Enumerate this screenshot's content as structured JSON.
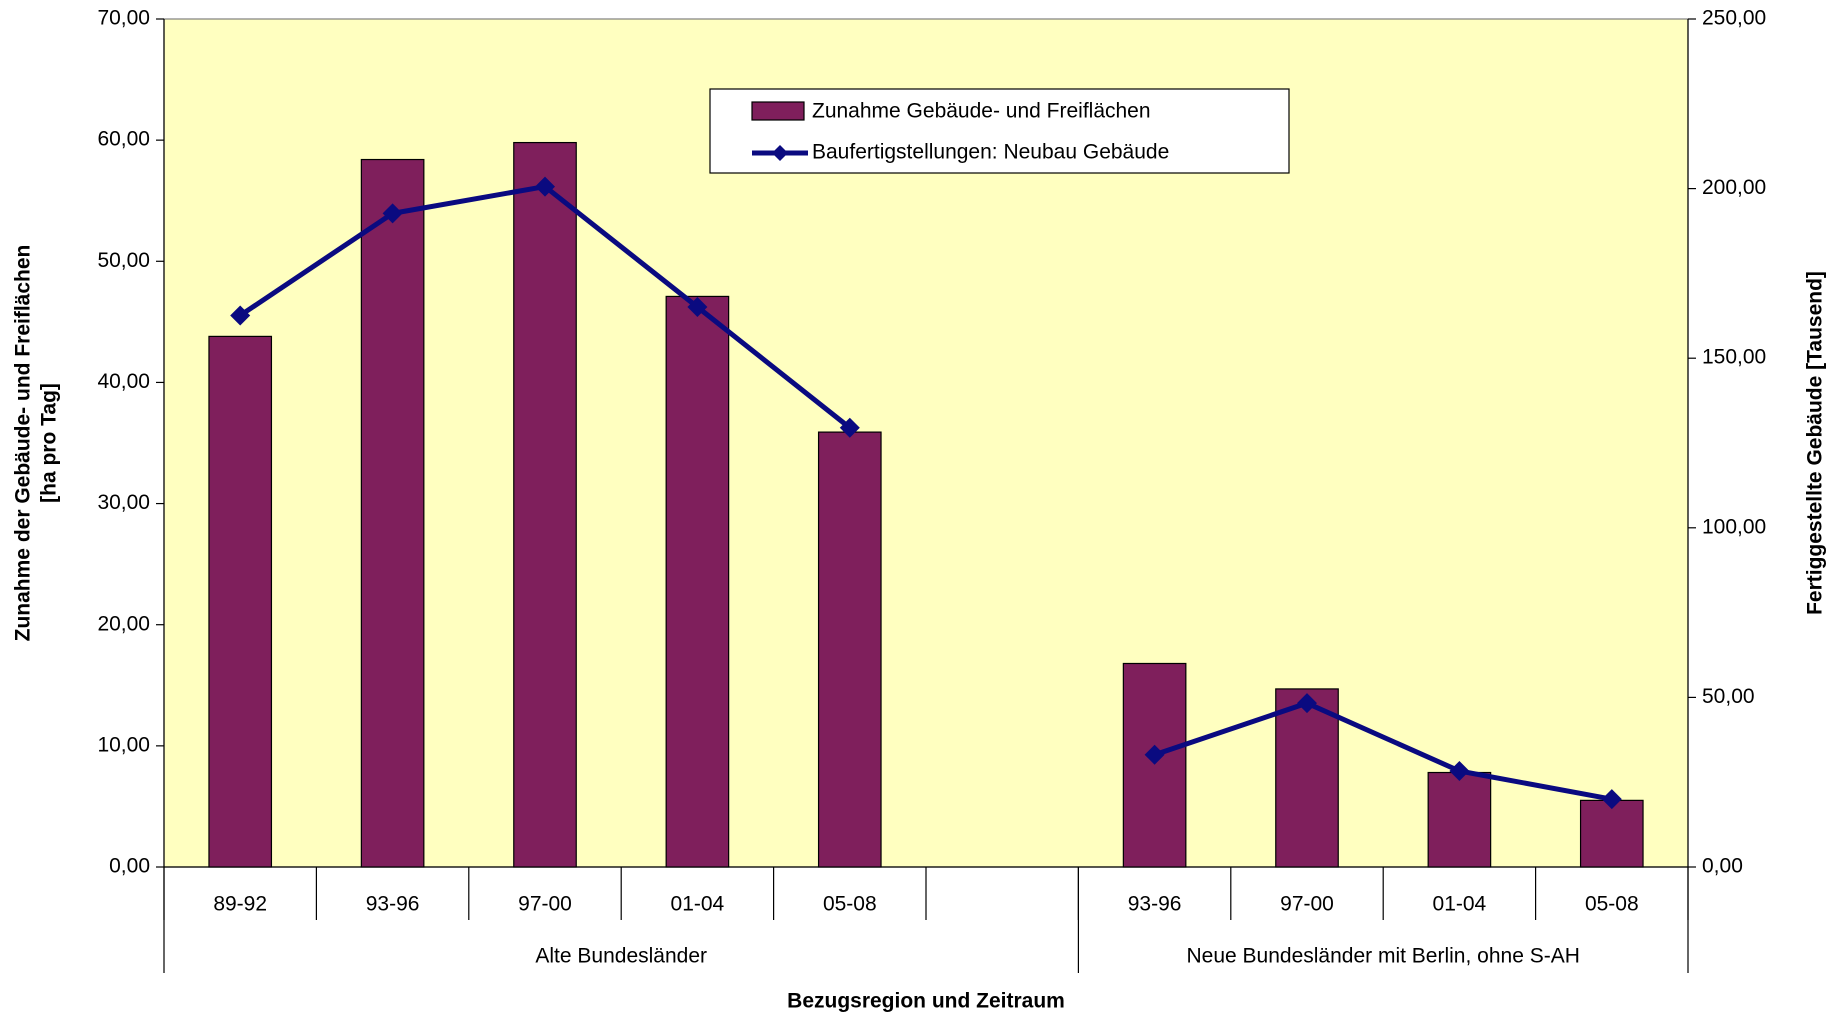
{
  "chart_data": {
    "type": "bar",
    "categories": [
      "89-92",
      "93-96",
      "97-00",
      "01-04",
      "05-08",
      null,
      "93-96",
      "97-00",
      "01-04",
      "05-08"
    ],
    "groups": [
      {
        "label": "Alte Bundesländer",
        "count": 6
      },
      {
        "label": "Neue Bundesländer mit Berlin, ohne S-AH",
        "count": 4
      }
    ],
    "series": [
      {
        "name": "Zunahme Gebäude- und Freiflächen",
        "type": "bar",
        "color": "#7f1f5c",
        "values": [
          43.8,
          58.4,
          59.8,
          47.1,
          35.9,
          null,
          16.8,
          14.7,
          7.8,
          5.5
        ]
      },
      {
        "name": "Baufertigstellungen: Neubau Gebäude",
        "type": "line",
        "axis": "y2",
        "color": "#0a0a80",
        "values": [
          162.6,
          192.7,
          200.6,
          165.1,
          129.5,
          null,
          33.1,
          48.3,
          28.3,
          20.0
        ]
      }
    ],
    "xlabel": "Bezugsregion und Zeitraum",
    "ylabel": [
      "Zunahme der Gebäude- und Freiflächen",
      "[ha pro Tag]"
    ],
    "y2label": "Fertiggestellte Gebäude [Tausend]",
    "ylim": [
      0,
      70
    ],
    "yticks": [
      {
        "value": 0,
        "label": "0,00"
      },
      {
        "value": 10,
        "label": "10,00"
      },
      {
        "value": 20,
        "label": "20,00"
      },
      {
        "value": 30,
        "label": "30,00"
      },
      {
        "value": 40,
        "label": "40,00"
      },
      {
        "value": 50,
        "label": "50,00"
      },
      {
        "value": 60,
        "label": "60,00"
      },
      {
        "value": 70,
        "label": "70,00"
      }
    ],
    "y2lim": [
      0,
      250
    ],
    "y2ticks": [
      {
        "value": 0,
        "label": "0,00"
      },
      {
        "value": 50,
        "label": "50,00"
      },
      {
        "value": 100,
        "label": "100,00"
      },
      {
        "value": 150,
        "label": "150,00"
      },
      {
        "value": 200,
        "label": "200,00"
      },
      {
        "value": 250,
        "label": "250,00"
      }
    ],
    "background": "#ffffc0"
  }
}
